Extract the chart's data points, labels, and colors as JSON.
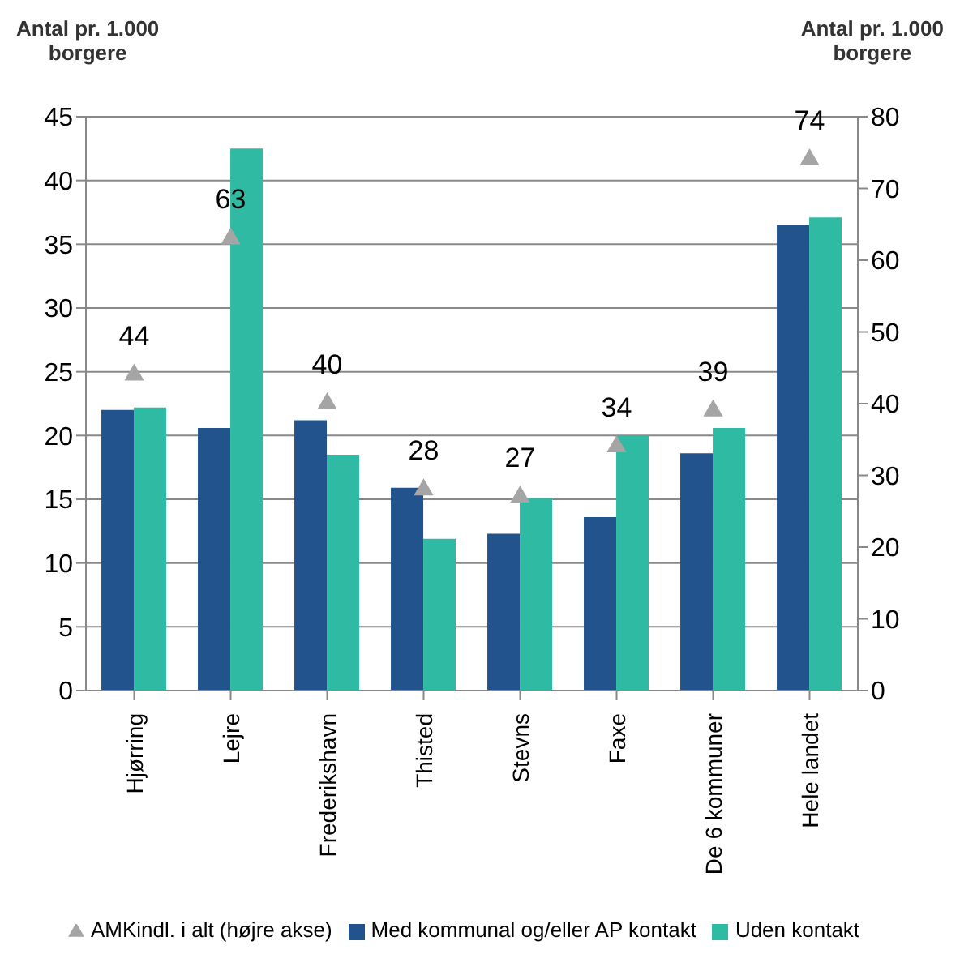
{
  "chart_data": {
    "type": "bar",
    "ylabel": "Antal pr. 1.000 borgere",
    "y2label": "Antal pr. 1.000 borgere",
    "categories": [
      "Hjørring",
      "Lejre",
      "Frederikshavn",
      "Thisted",
      "Stevns",
      "Faxe",
      "De 6 kommuner",
      "Hele landet"
    ],
    "series": [
      {
        "name": "Med kommunal og/eller AP kontakt",
        "color": "#23538c",
        "values": [
          22.0,
          20.6,
          21.2,
          15.9,
          12.3,
          13.6,
          18.6,
          36.5
        ]
      },
      {
        "name": "Uden kontakt",
        "color": "#2fbba3",
        "values": [
          22.2,
          42.5,
          18.5,
          11.9,
          15.1,
          20.0,
          20.6,
          37.1
        ]
      },
      {
        "name": "AMKindl. i alt (højre akse)",
        "type": "scatter",
        "axis": "y2",
        "marker": "triangle",
        "color": "#a5a5a5",
        "values": [
          44,
          63,
          40,
          28,
          27,
          34,
          39,
          74
        ],
        "value_labels": [
          "44",
          "63",
          "40",
          "28",
          "27",
          "34",
          "39",
          "74"
        ]
      }
    ],
    "ylim": [
      0,
      45
    ],
    "yticks": [
      0,
      5,
      10,
      15,
      20,
      25,
      30,
      35,
      40,
      45
    ],
    "y2lim": [
      0,
      80
    ],
    "y2ticks": [
      0,
      10,
      20,
      30,
      40,
      50,
      60,
      70,
      80
    ],
    "grid": "y",
    "legend": "bottom"
  }
}
